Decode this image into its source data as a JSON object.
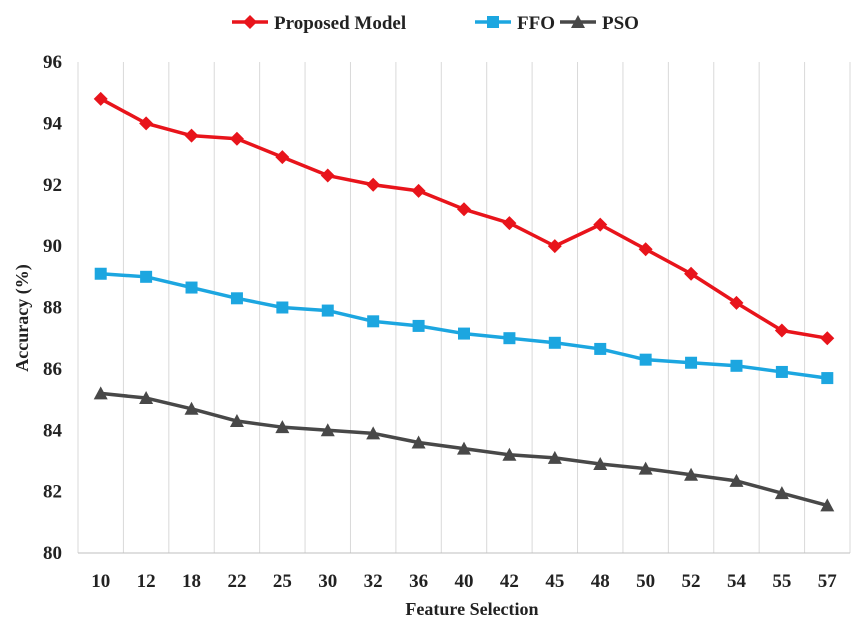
{
  "chart_data": {
    "type": "line",
    "title": "",
    "xlabel": "Feature Selection",
    "ylabel": "Accuracy (%)",
    "categories": [
      "10",
      "12",
      "18",
      "22",
      "25",
      "30",
      "32",
      "36",
      "40",
      "42",
      "45",
      "48",
      "50",
      "52",
      "54",
      "55",
      "57"
    ],
    "ylim": [
      80,
      96
    ],
    "yticks": [
      "80",
      "82",
      "84",
      "86",
      "88",
      "90",
      "92",
      "94",
      "96"
    ],
    "grid": "vertical",
    "legend": "top",
    "series": [
      {
        "name": "Proposed Model",
        "color": "#e8141b",
        "marker": "diamond",
        "values": [
          94.8,
          94.0,
          93.6,
          93.5,
          92.9,
          92.3,
          92.0,
          91.8,
          91.2,
          90.75,
          90.0,
          90.7,
          89.9,
          89.1,
          88.15,
          87.25,
          87.0
        ]
      },
      {
        "name": "FFO",
        "color": "#1ca6e0",
        "marker": "square",
        "values": [
          89.1,
          89.0,
          88.65,
          88.3,
          88.0,
          87.9,
          87.55,
          87.4,
          87.15,
          87.0,
          86.85,
          86.65,
          86.3,
          86.2,
          86.1,
          85.9,
          85.7
        ]
      },
      {
        "name": "PSO",
        "color": "#484848",
        "marker": "triangle",
        "values": [
          85.2,
          85.05,
          84.7,
          84.3,
          84.1,
          84.0,
          83.9,
          83.6,
          83.4,
          83.2,
          83.1,
          82.9,
          82.75,
          82.55,
          82.35,
          81.95,
          81.55
        ]
      }
    ]
  }
}
